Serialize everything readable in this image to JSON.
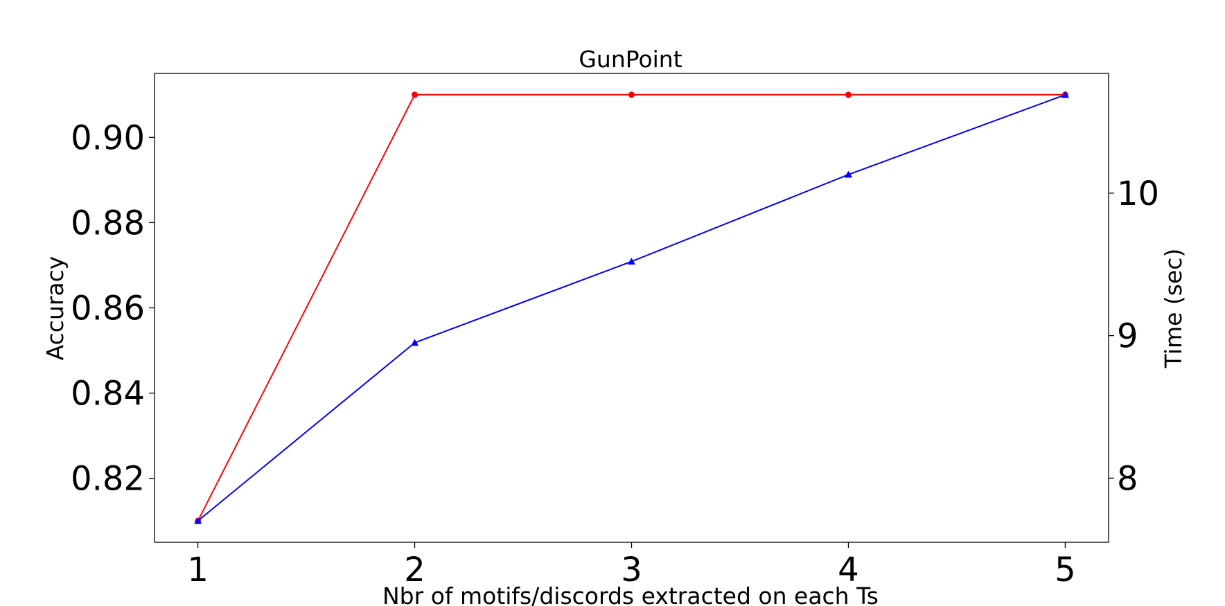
{
  "chart_data": {
    "type": "line",
    "title": "GunPoint",
    "xlabel": "Nbr of motifs/discords extracted on each Ts",
    "ylabel_left": "Accuracy",
    "ylabel_right": "Time (sec)",
    "x": [
      1,
      2,
      3,
      4,
      5
    ],
    "xlim": [
      0.8,
      5.2
    ],
    "xticks": [
      1,
      2,
      3,
      4,
      5
    ],
    "ylim_left": [
      0.805,
      0.915
    ],
    "yticks_left": [
      "0.82",
      "0.84",
      "0.86",
      "0.88",
      "0.90"
    ],
    "ylim_right": [
      7.55,
      10.84
    ],
    "yticks_right": [
      "8",
      "9",
      "10"
    ],
    "grid": false,
    "series": [
      {
        "axis": "left",
        "color": "#ff0000",
        "marker": "circle",
        "values": [
          0.81,
          0.91,
          0.91,
          0.91,
          0.91
        ]
      },
      {
        "axis": "right",
        "color": "#0000ff",
        "marker": "triangle",
        "values": [
          7.7,
          8.95,
          9.52,
          10.13,
          10.69
        ]
      }
    ]
  }
}
